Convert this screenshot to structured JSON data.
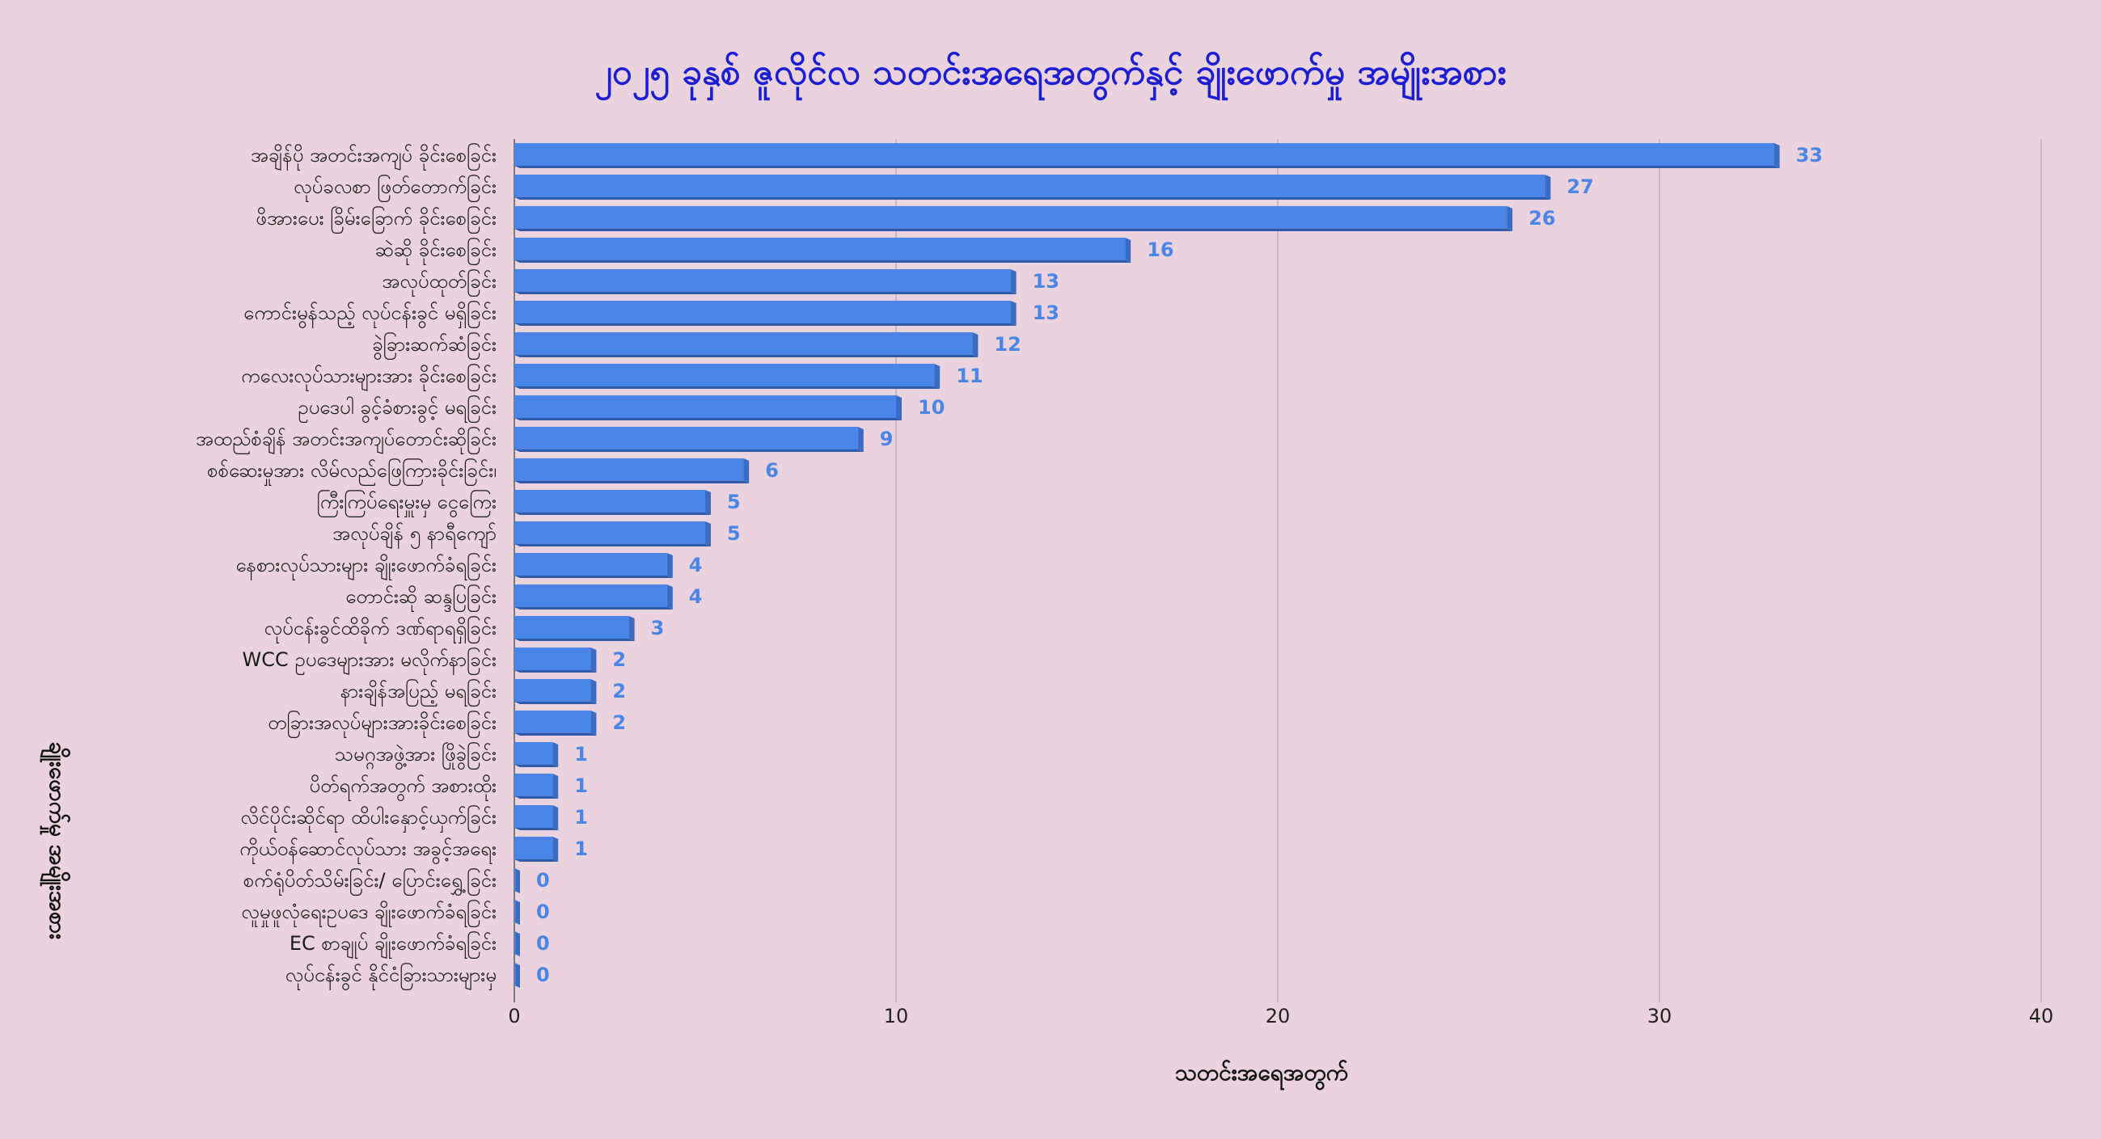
{
  "chart_data": {
    "type": "bar",
    "orientation": "horizontal",
    "title": "၂၀၂၅ ခုနှစ် ဇူလိုင်လ   သတင်းအရေအတွက်နှင့် ချိုးဖောက်မှု အမျိုးအစား",
    "xlabel": "သတင်းအရေအတွက်",
    "ylabel": "ချိုးဖောက်မှု အမျိုးအစား",
    "xlim": [
      0,
      40
    ],
    "xticks": [
      0,
      10,
      20,
      30,
      40
    ],
    "grid": true,
    "data_labels": true,
    "bar_color": "#4a86e8",
    "bar_side_color": "#3b6cc4",
    "label_color": "#4a86e8",
    "categories": [
      "အချိန်ပို အတင်းအကျပ် ခိုင်းစေခြင်း",
      "လုပ်ခလစာ ဖြတ်တောက်ခြင်း",
      "ဖိအားပေး ခြိမ်းခြောက် ခိုင်းစေခြင်း",
      "ဆဲဆို ခိုင်းစေခြင်း",
      "အလုပ်ထုတ်ခြင်း",
      "ကောင်းမွန်သည့် လုပ်ငန်းခွင် မရှိခြင်း",
      "ခွဲခြားဆက်ဆံခြင်း",
      "ကလေးလုပ်သားများအား ခိုင်းစေခြင်း",
      "ဥပဒေပါ ခွင့်ခံစားခွင့် မရခြင်း",
      "အထည်စံချိန် အတင်းအကျပ်တောင်းဆိုခြင်း",
      "စစ်ဆေးမှုအား လိမ်လည်ဖြေကြားခိုင်းခြင်း၊",
      "ကြီးကြပ်ရေးမှူးမှ ငွေကြေး",
      "အလုပ်ချိန် ၅ နာရီကျော်",
      "နေစားလုပ်သားများ ချိုးဖောက်ခံရခြင်း",
      "တောင်းဆို ဆန္ဒပြခြင်း",
      "လုပ်ငန်းခွင်ထိခိုက် ဒဏ်ရာရရှိခြင်း",
      "WCC ဥပဒေများအား မလိုက်နာခြင်း",
      "နားချိန်အပြည့် မရခြင်း",
      "တခြားအလုပ်များအားခိုင်းစေခြင်း",
      "သမဂ္ဂအဖွဲ့အား ဖြိုခွဲခြင်း",
      "ပိတ်ရက်အတွက် အစားထိုး",
      "လိင်ပိုင်းဆိုင်ရာ ထိပါးနှောင့်ယှက်ခြင်း",
      "ကိုယ်ဝန်ဆောင်လုပ်သား အခွင့်အရေး",
      "စက်ရုံပိတ်သိမ်းခြင်း/ ပြောင်းရွှေ့ခြင်း",
      "လူမှုဖူလုံရေးဥပဒေ ချိုးဖောက်ခံရခြင်း",
      "EC စာချုပ် ချိုးဖောက်ခံရခြင်း",
      "လုပ်ငန်းခွင် နိုင်ငံခြားသားများမှ"
    ],
    "values": [
      33,
      27,
      26,
      16,
      13,
      13,
      12,
      11,
      10,
      9,
      6,
      5,
      5,
      4,
      4,
      3,
      2,
      2,
      2,
      1,
      1,
      1,
      1,
      0,
      0,
      0,
      0
    ]
  }
}
